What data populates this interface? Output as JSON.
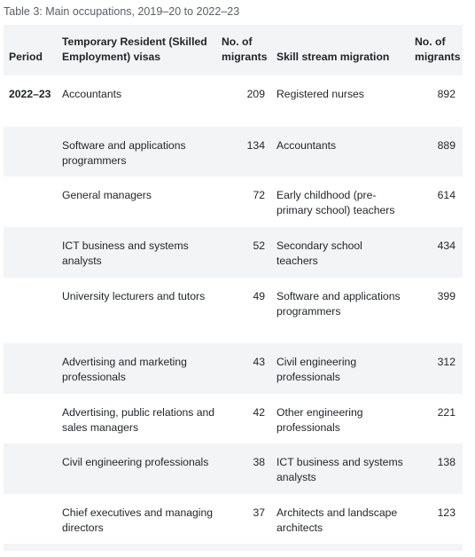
{
  "caption": "Table 3: Main occupations, 2019–20 to 2022–23",
  "headers": {
    "period": "Period",
    "temp": "Temporary Resident (Skilled Employment) visas",
    "tnum": "No. of migrants",
    "skill": "Skill stream migration",
    "snum": "No. of migrants"
  },
  "rows": [
    {
      "period": "2022–23",
      "temp": "Accountants",
      "tnum": "209",
      "skill": "Registered nurses",
      "snum": "892"
    },
    {
      "period": "",
      "temp": "Software and applications programmers",
      "tnum": "134",
      "skill": "Accountants",
      "snum": "889"
    },
    {
      "period": "",
      "temp": "General managers",
      "tnum": "72",
      "skill": "Early childhood (pre-primary school) teachers",
      "snum": "614"
    },
    {
      "period": "",
      "temp": "ICT business and systems analysts",
      "tnum": "52",
      "skill": "Secondary school teachers",
      "snum": "434"
    },
    {
      "period": "",
      "temp": "University lecturers and tutors",
      "tnum": "49",
      "skill": "Software and applications programmers",
      "snum": "399"
    },
    {
      "period": "",
      "temp": "Advertising and marketing professionals",
      "tnum": "43",
      "skill": "Civil engineering professionals",
      "snum": "312"
    },
    {
      "period": "",
      "temp": "Advertising, public relations and sales managers",
      "tnum": "42",
      "skill": "Other engineering professionals",
      "snum": "221"
    },
    {
      "period": "",
      "temp": "Civil engineering professionals",
      "tnum": "38",
      "skill": "ICT business and systems analysts",
      "snum": "138"
    },
    {
      "period": "",
      "temp": "Chief executives and managing directors",
      "tnum": "37",
      "skill": "Architects and landscape architects",
      "snum": "123"
    }
  ]
}
